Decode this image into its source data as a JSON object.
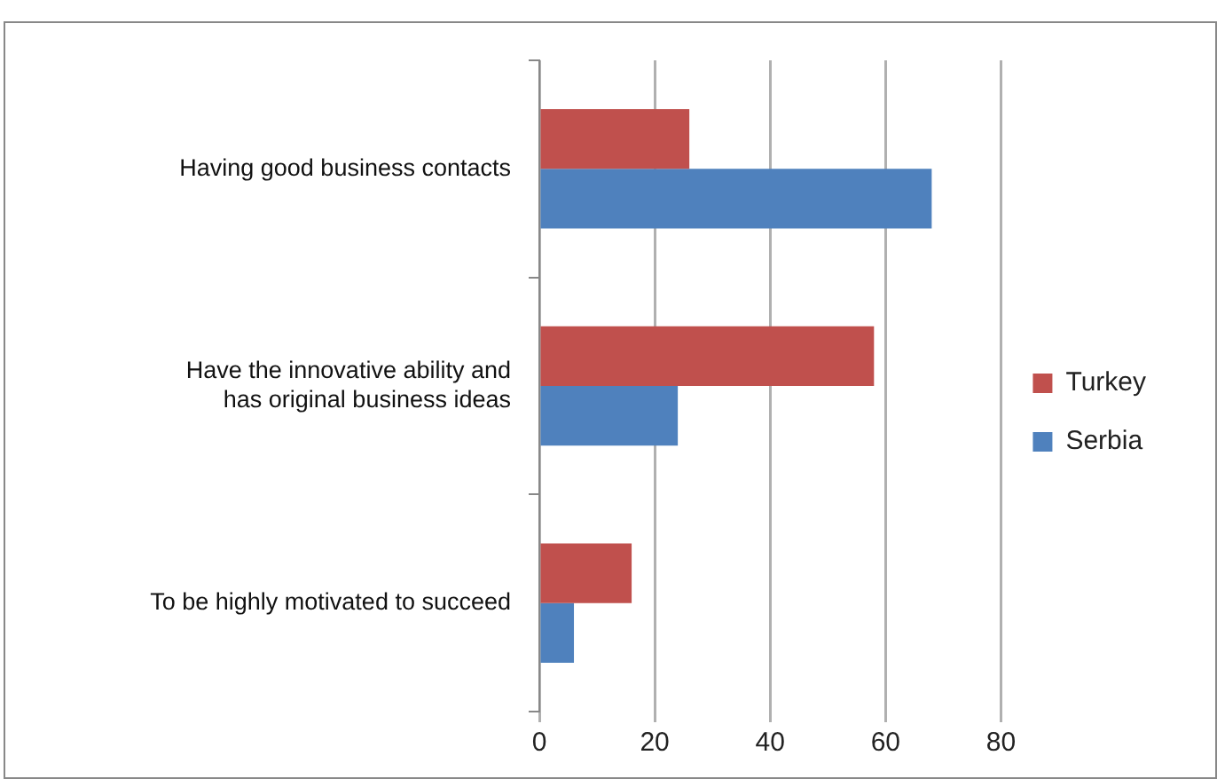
{
  "chart_data": {
    "type": "bar",
    "orientation": "horizontal",
    "categories": [
      "Having good business contacts",
      "Have the innovative ability and has original business ideas",
      "To be highly motivated to succeed"
    ],
    "series": [
      {
        "name": "Turkey",
        "color": "#c0504d",
        "values": [
          26,
          58,
          16
        ]
      },
      {
        "name": "Serbia",
        "color": "#4f81bd",
        "values": [
          68,
          24,
          6
        ]
      }
    ],
    "xlim": [
      0,
      80
    ],
    "xticks": [
      0,
      20,
      40,
      60,
      80
    ],
    "grid": "x",
    "legend": "right"
  }
}
